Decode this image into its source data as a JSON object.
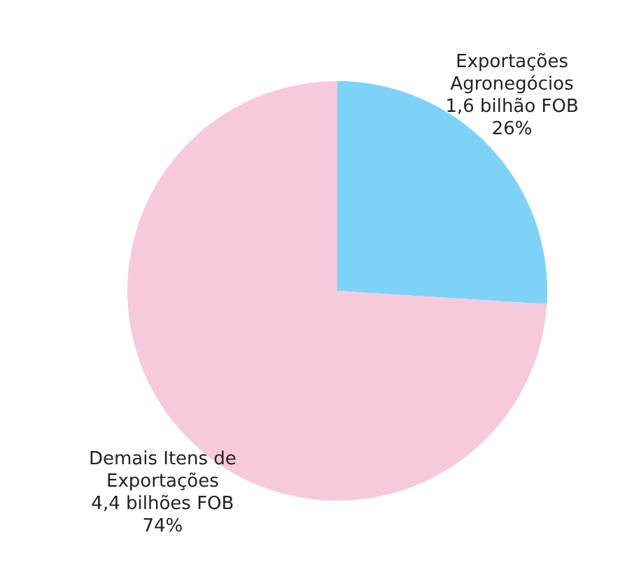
{
  "chart_data": {
    "type": "pie",
    "categories": [
      "Exportações Agronegócios",
      "Demais Itens de Exportações"
    ],
    "values": [
      26,
      74
    ],
    "colors": [
      "#7dd3f7",
      "#f7c9dd"
    ],
    "value_labels": [
      "1,6 bilhão FOB\n26%",
      "4,4 bilhões FOB\n74%"
    ],
    "legend": false
  }
}
